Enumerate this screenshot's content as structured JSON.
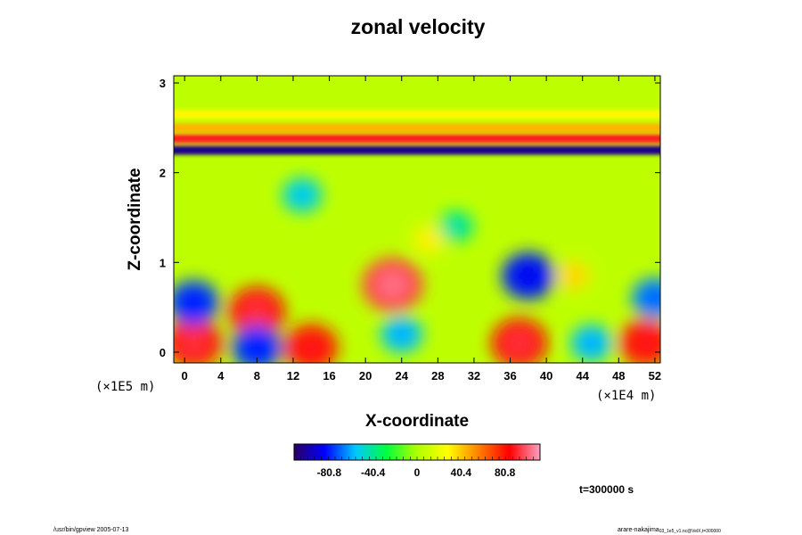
{
  "chart_data": {
    "type": "heatmap",
    "title": "zonal velocity",
    "xlabel": "X-coordinate",
    "ylabel": "Z-coordinate",
    "x_units": "(×1E4 m)",
    "y_units": "(×1E5 m)",
    "x_ticks": [
      0,
      4,
      8,
      12,
      16,
      20,
      24,
      28,
      32,
      36,
      40,
      44,
      48,
      52
    ],
    "x_tick_labels": [
      "0",
      "4",
      "8",
      "12",
      "16",
      "20",
      "24",
      "28",
      "32",
      "36",
      "40",
      "44",
      "48",
      "52"
    ],
    "y_ticks": [
      0,
      1,
      2,
      3
    ],
    "y_tick_labels": [
      "0",
      "1",
      "2",
      "3"
    ],
    "xlim": [
      -1.2,
      52.6
    ],
    "ylim": [
      -0.12,
      3.08
    ],
    "colorbar": {
      "ticks": [
        -80.8,
        -40.4,
        0,
        40.4,
        80.8
      ],
      "tick_labels": [
        "-80.8",
        "-40.4",
        "0",
        "40.4",
        "80.8"
      ],
      "range": [
        -113,
        113
      ],
      "colormap": [
        "#2a0060",
        "#0000ff",
        "#00c8ff",
        "#00ff40",
        "#b0ff00",
        "#ffff00",
        "#ff8000",
        "#ff0000",
        "#ffa0c0"
      ]
    },
    "features": [
      {
        "x": 23,
        "z": 0.75,
        "value": 95
      },
      {
        "x": 1,
        "z": 0.1,
        "value": 85
      },
      {
        "x": 8,
        "z": 0.45,
        "value": 85
      },
      {
        "x": 14,
        "z": 0.05,
        "value": 80
      },
      {
        "x": 37,
        "z": 0.1,
        "value": 85
      },
      {
        "x": 51,
        "z": 0.1,
        "value": 80
      },
      {
        "x": 1,
        "z": 0.55,
        "value": -75
      },
      {
        "x": 8,
        "z": 0.05,
        "value": -75
      },
      {
        "x": 24,
        "z": 0.2,
        "value": -55
      },
      {
        "x": 38,
        "z": 0.85,
        "value": -80
      },
      {
        "x": 45,
        "z": 0.1,
        "value": -55
      },
      {
        "x": 52,
        "z": 0.6,
        "value": -65
      },
      {
        "x": 13,
        "z": 1.75,
        "value": -50
      },
      {
        "x": 30,
        "z": 1.4,
        "value": -40
      },
      {
        "x": 43,
        "z": 0.85,
        "value": 35
      },
      {
        "x": 27,
        "z": 1.25,
        "value": 30
      }
    ],
    "bands": [
      {
        "z": 2.25,
        "value": -105
      },
      {
        "z": 2.38,
        "value": 90
      },
      {
        "z": 2.5,
        "value": 45
      },
      {
        "z": 2.65,
        "value": 30
      }
    ]
  },
  "time_label": "t=300000 s",
  "footer_left": "/usr/bin/gpview 2005-07-13",
  "footer_right": "arare-nakajima",
  "footer_right_small": "03_1e5_v1.nc@VelX,t=300000"
}
